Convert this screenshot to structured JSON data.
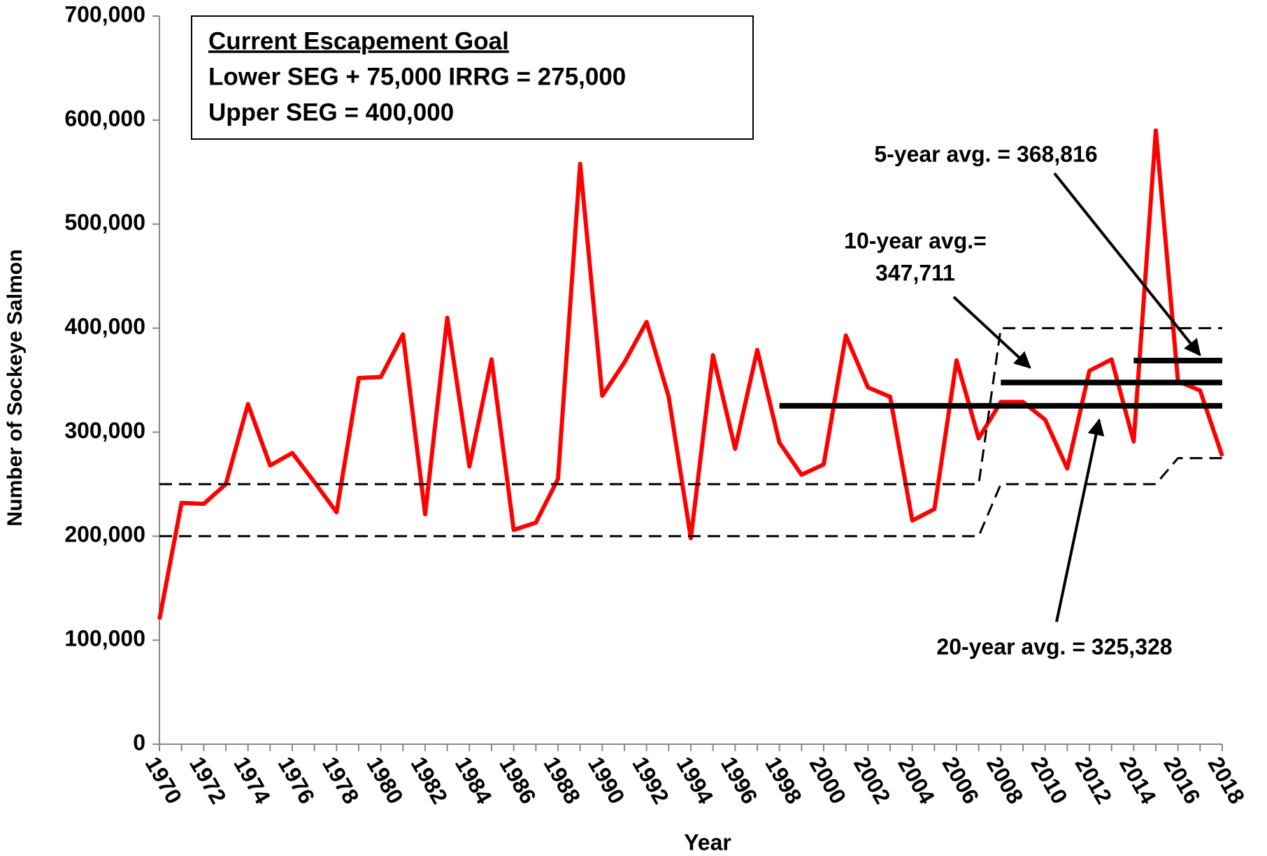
{
  "chart_data": {
    "type": "line",
    "y_label": "Number of Sockeye Salmon",
    "x_label": "Year",
    "categories": [
      "1970",
      null,
      "1972",
      null,
      "1974",
      null,
      "1976",
      null,
      "1978",
      null,
      "1980",
      null,
      "1982",
      null,
      "1984",
      null,
      "1986",
      null,
      "1988",
      null,
      "1990",
      null,
      "1992",
      null,
      "1994",
      null,
      "1996",
      null,
      "1998",
      null,
      "2000",
      null,
      "2002",
      null,
      "2004",
      null,
      "2006",
      null,
      "2008",
      null,
      "2010",
      null,
      "2012",
      null,
      "2014",
      null,
      "2016",
      null,
      "2018"
    ],
    "series": [
      {
        "color": "#ff0000",
        "width": 6,
        "dash": false,
        "values": [
          120000,
          232000,
          231000,
          250000,
          327000,
          268000,
          280000,
          252000,
          223000,
          352000,
          353000,
          394000,
          221000,
          410000,
          267000,
          370000,
          206000,
          213000,
          255000,
          558000,
          335000,
          367000,
          406000,
          334000,
          198000,
          374000,
          284000,
          379000,
          290000,
          259000,
          269000,
          393000,
          343000,
          334000,
          215000,
          226000,
          369000,
          294000,
          329000,
          329000,
          312000,
          265000,
          359000,
          370000,
          291000,
          590000,
          349000,
          340000,
          277000
        ]
      },
      {
        "color": "#000000",
        "width": 3,
        "dash": true,
        "values": [
          200000,
          200000,
          200000,
          200000,
          200000,
          200000,
          200000,
          200000,
          200000,
          200000,
          200000,
          200000,
          200000,
          200000,
          200000,
          200000,
          200000,
          200000,
          200000,
          200000,
          200000,
          200000,
          200000,
          200000,
          200000,
          200000,
          200000,
          200000,
          200000,
          200000,
          200000,
          200000,
          200000,
          200000,
          200000,
          200000,
          200000,
          200000,
          250000,
          250000,
          250000,
          250000,
          250000,
          250000,
          250000,
          250000,
          275000,
          275000,
          275000
        ]
      },
      {
        "color": "#000000",
        "width": 3,
        "dash": true,
        "values": [
          250000,
          250000,
          250000,
          250000,
          250000,
          250000,
          250000,
          250000,
          250000,
          250000,
          250000,
          250000,
          250000,
          250000,
          250000,
          250000,
          250000,
          250000,
          250000,
          250000,
          250000,
          250000,
          250000,
          250000,
          250000,
          250000,
          250000,
          250000,
          250000,
          250000,
          250000,
          250000,
          250000,
          250000,
          250000,
          250000,
          250000,
          250000,
          400000,
          400000,
          400000,
          400000,
          400000,
          400000,
          400000,
          400000,
          400000,
          400000,
          400000
        ]
      }
    ],
    "ylim": [
      0,
      700000
    ],
    "yticks": [
      0,
      {
        "value": 100000,
        "label": "100,000"
      },
      {
        "value": 200000,
        "label": "200,000"
      },
      {
        "value": 300000,
        "label": "300,000"
      },
      {
        "value": 400000,
        "label": "400,000"
      },
      {
        "value": 500000,
        "label": "500,000"
      },
      {
        "value": 600000,
        "label": "600,000"
      },
      {
        "value": 700000,
        "label": "700,000"
      }
    ],
    "averages": [
      {
        "label_lines": [
          "20-year avg. = 325,328"
        ],
        "value": 325328,
        "start_index": 28
      },
      {
        "label_lines": [
          "10-year avg.=",
          "347,711"
        ],
        "value": 347711,
        "start_index": 38
      },
      {
        "label_lines": [
          "5-year avg. = 368,816"
        ],
        "value": 368816,
        "start_index": 44
      }
    ],
    "goal_box": [
      "Current Escapement Goal",
      "Lower SEG + 75,000 IRRG = 275,000",
      "Upper SEG = 400,000"
    ]
  }
}
